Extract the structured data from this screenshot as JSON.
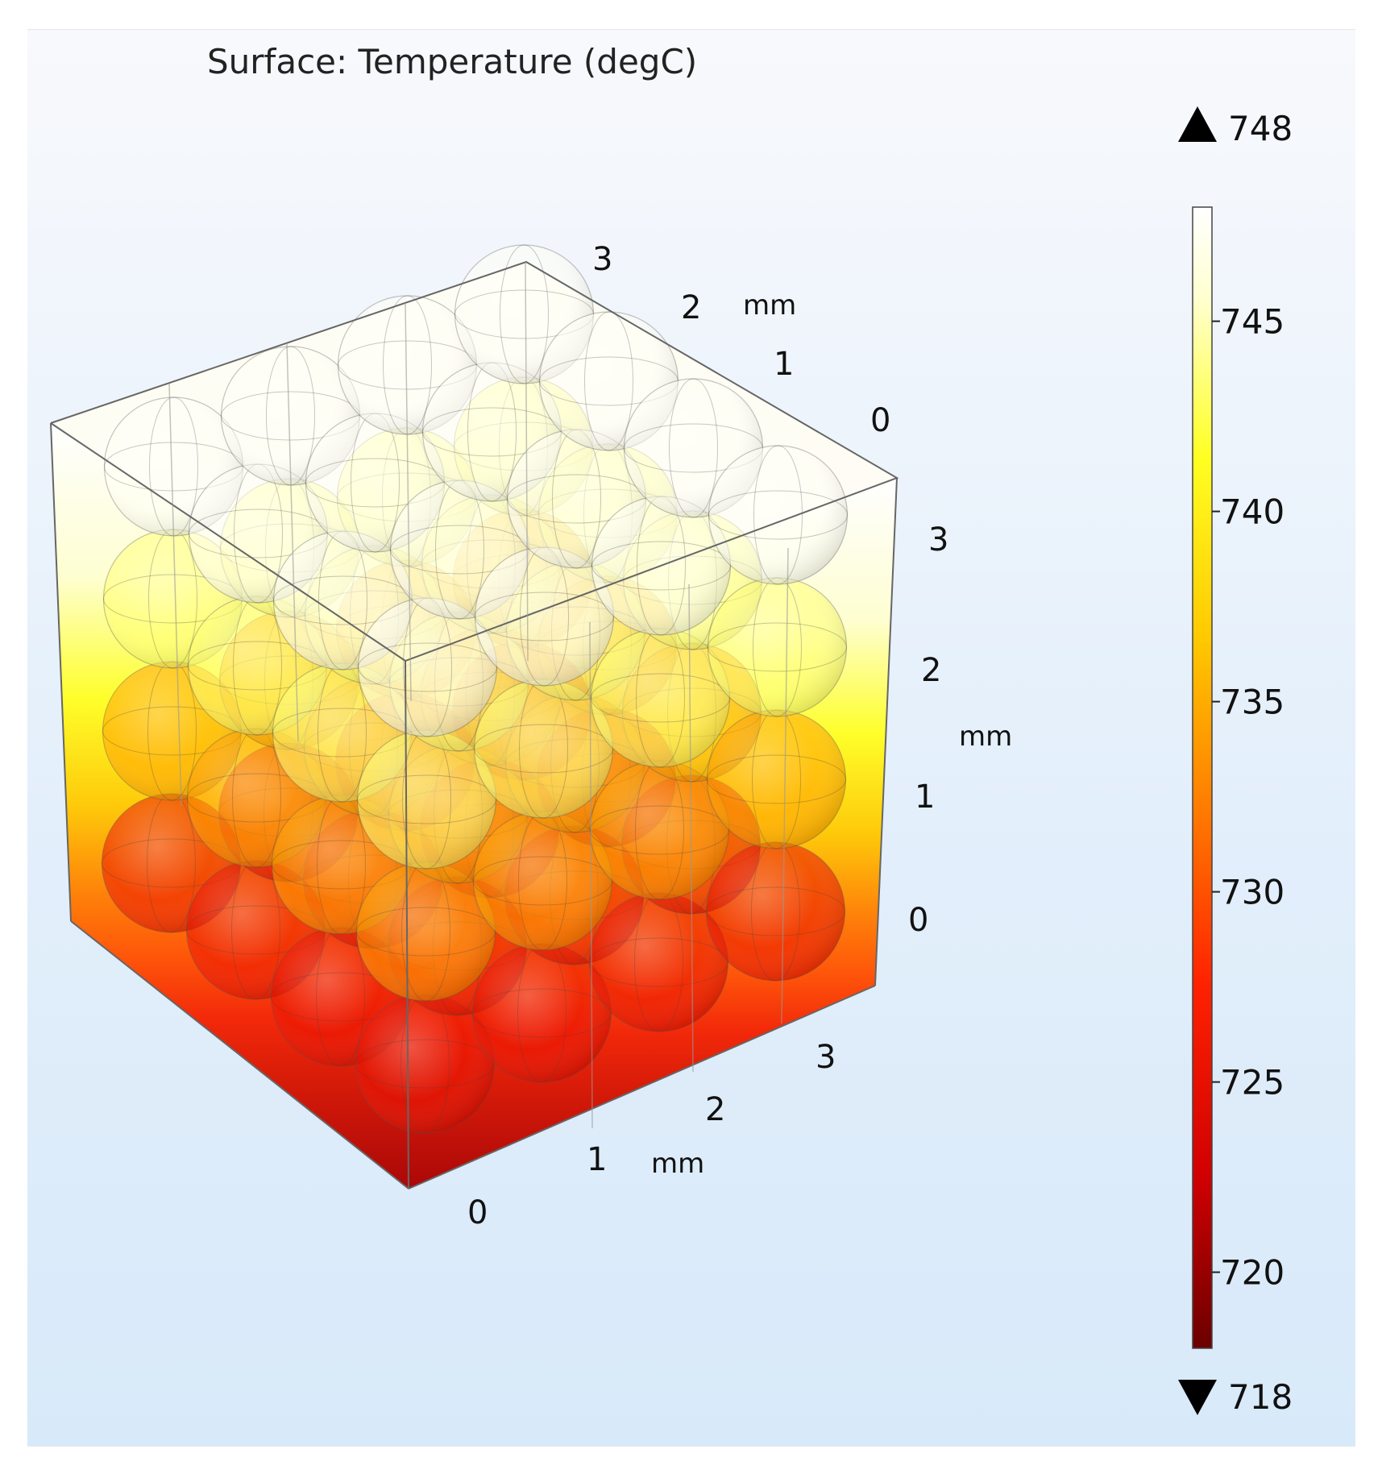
{
  "chart_data": {
    "type": "3d-surface",
    "title": "Surface: Temperature (degC)",
    "quantity": "Temperature",
    "unit": "degC",
    "colormap": "heat",
    "colors": [
      "#6b0000",
      "#d00000",
      "#ff2200",
      "#ff7a00",
      "#ffc800",
      "#ffff22",
      "#ffffd0",
      "#ffffff"
    ],
    "range": {
      "min": 718,
      "max": 748
    },
    "colorbar": {
      "ticks": [
        720,
        725,
        730,
        735,
        740,
        745
      ],
      "max_label": "748",
      "min_label": "718"
    },
    "axes": {
      "x": {
        "unit": "mm",
        "ticks": [
          0,
          1,
          2,
          3
        ]
      },
      "y": {
        "unit": "mm",
        "ticks": [
          0,
          1,
          2,
          3
        ]
      },
      "z": {
        "unit": "mm",
        "ticks": [
          0,
          1,
          2,
          3
        ]
      }
    },
    "spheres": {
      "grid": [
        4,
        4,
        4
      ]
    }
  }
}
